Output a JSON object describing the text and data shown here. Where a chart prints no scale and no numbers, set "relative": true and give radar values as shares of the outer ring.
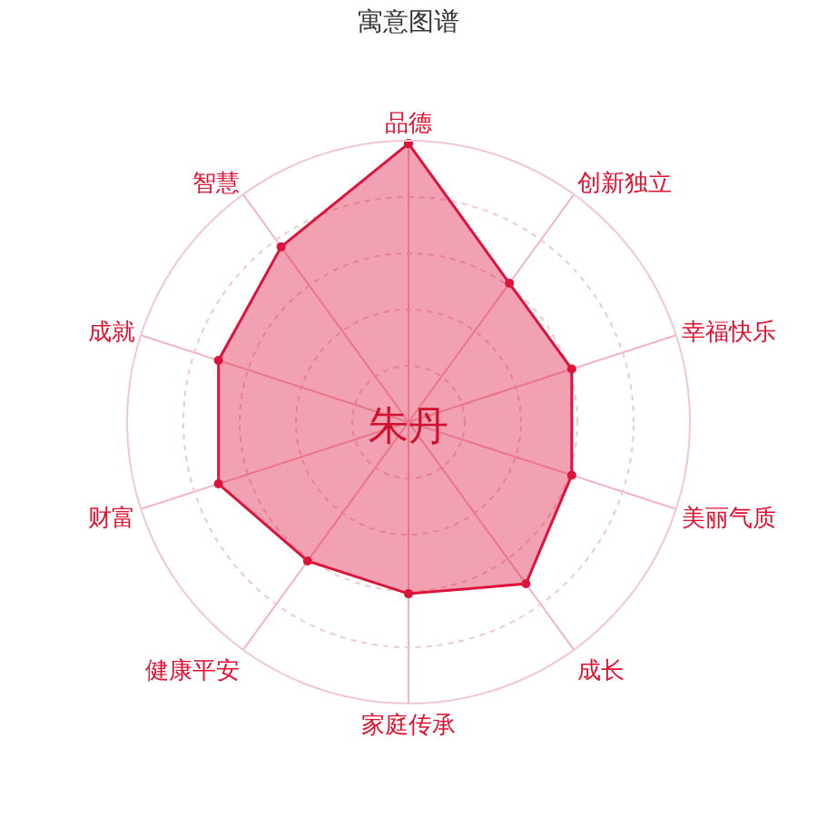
{
  "chart_data": {
    "type": "radar",
    "title": "寓意图谱",
    "relative": true,
    "grid": true,
    "marker": "circle",
    "categories": [
      "品德",
      "创新独立",
      "幸福快乐",
      "美丽气质",
      "成长",
      "家庭传承",
      "健康平安",
      "财富",
      "成就",
      "智慧"
    ],
    "series": [
      {
        "color": "#dc143c",
        "values": [
          0.99,
          0.61,
          0.61,
          0.61,
          0.71,
          0.61,
          0.61,
          0.71,
          0.71,
          0.77
        ]
      }
    ],
    "annotations": [
      "朱丹"
    ]
  }
}
